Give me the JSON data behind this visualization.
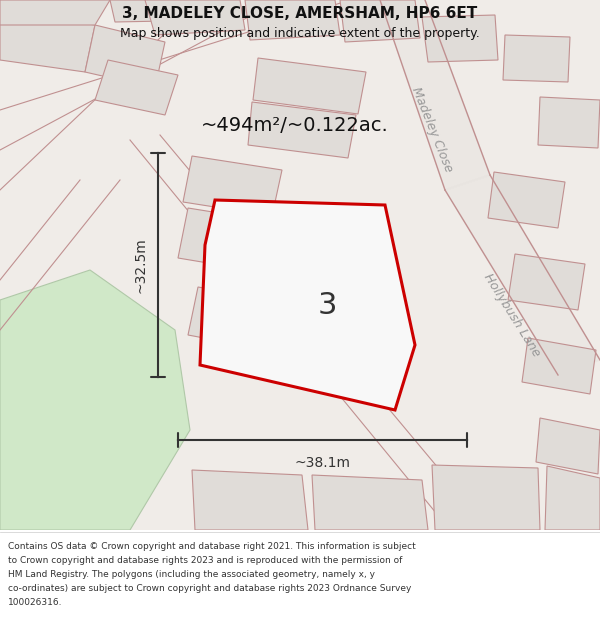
{
  "title_line1": "3, MADELEY CLOSE, AMERSHAM, HP6 6ET",
  "title_line2": "Map shows position and indicative extent of the property.",
  "footer_lines": [
    "Contains OS data © Crown copyright and database right 2021. This information is subject",
    "to Crown copyright and database rights 2023 and is reproduced with the permission of",
    "HM Land Registry. The polygons (including the associated geometry, namely x, y",
    "co-ordinates) are subject to Crown copyright and database rights 2023 Ordnance Survey",
    "100026316."
  ],
  "bg_color": "#f0ece8",
  "plot_color": "#f8f8f8",
  "green_area_color": "#d0e8c8",
  "red_outline": "#cc0000",
  "dim_color": "#c09090",
  "property_label": "3",
  "area_label": "~494m²/~0.122ac.",
  "dim_width": "~38.1m",
  "dim_height": "~32.5m",
  "street_label_1": "Madeley Close",
  "street_label_2": "Hollybush Lane"
}
